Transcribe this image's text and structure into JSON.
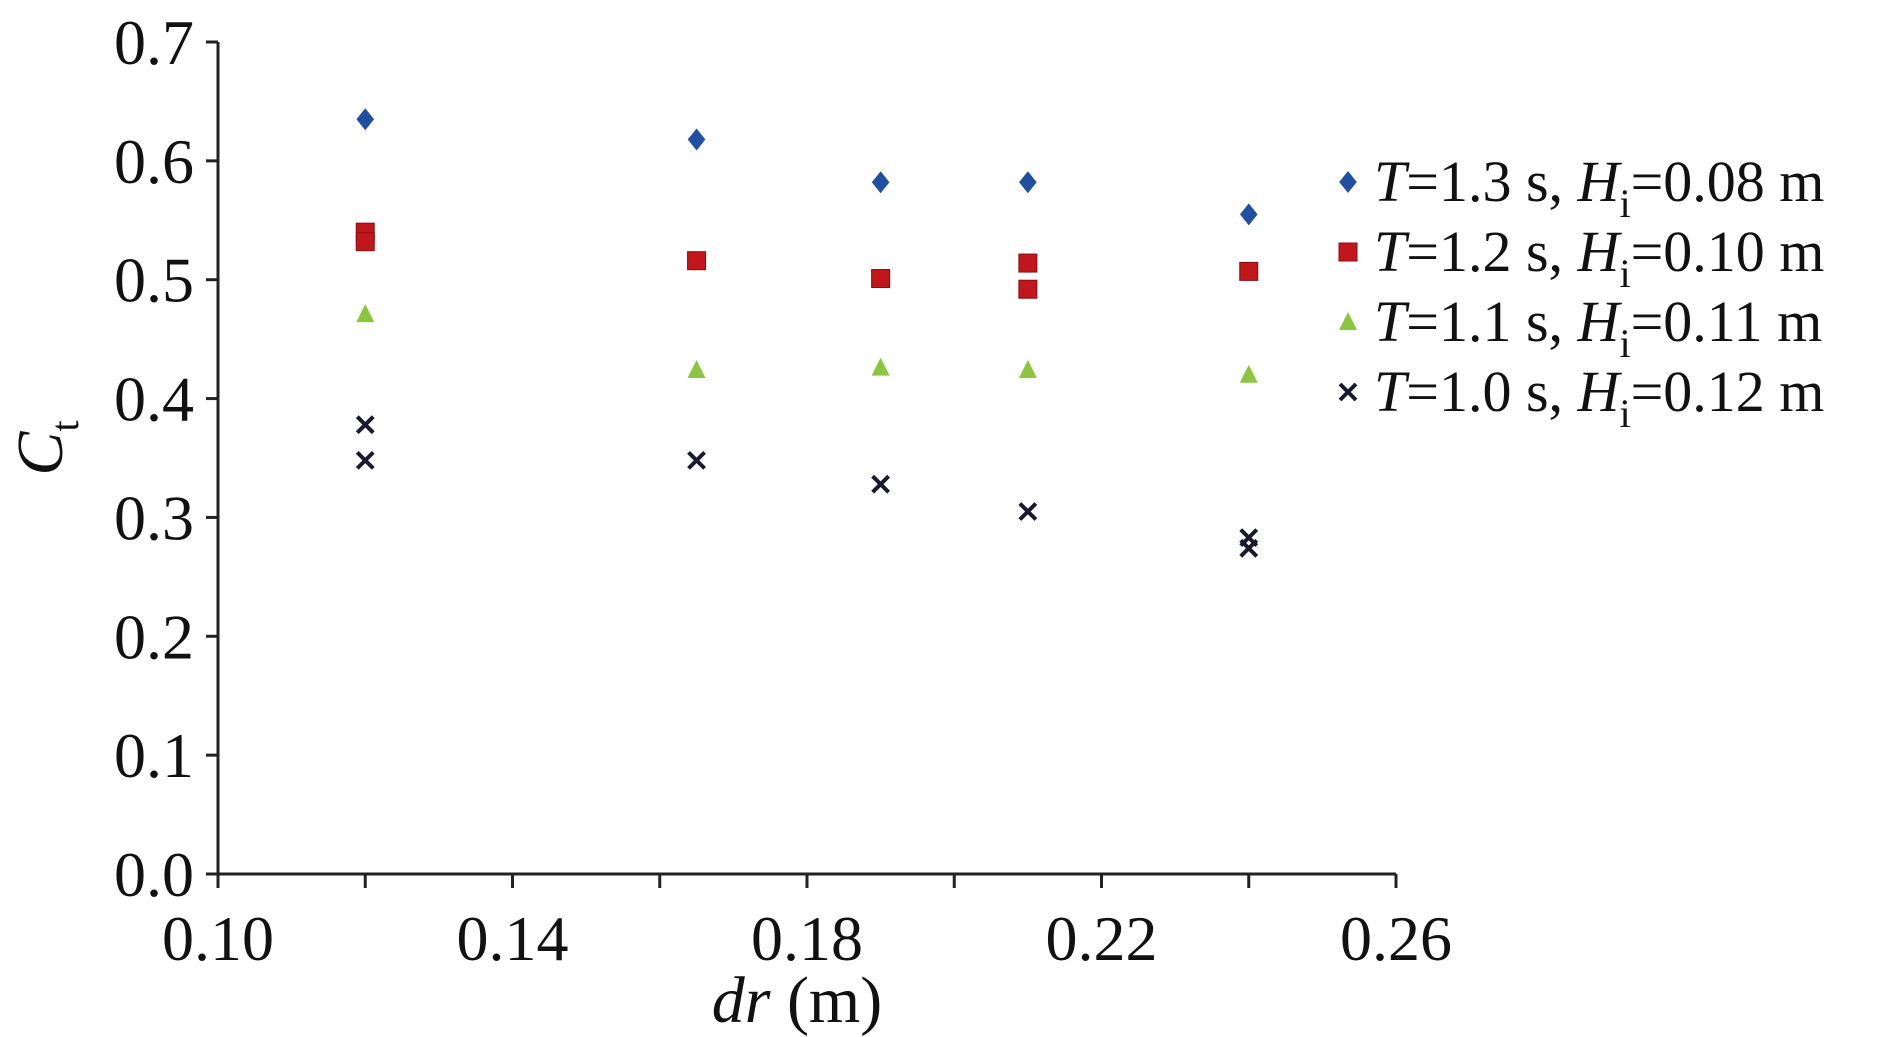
{
  "chart_data": {
    "type": "scatter",
    "title": "",
    "xlabel": {
      "var": "dr",
      "unit": " (m)"
    },
    "ylabel": {
      "main": "C",
      "sub": "t"
    },
    "xlim": [
      0.1,
      0.26
    ],
    "ylim": [
      0.0,
      0.7
    ],
    "xticks": [
      "0.10",
      "0.14",
      "0.18",
      "0.22",
      "0.26"
    ],
    "yticks": [
      "0.0",
      "0.1",
      "0.2",
      "0.3",
      "0.4",
      "0.5",
      "0.6",
      "0.7"
    ],
    "grid": false,
    "legend_position": "right",
    "series": [
      {
        "name": "T=1.3 s, Hi=0.08 m",
        "label_parts": {
          "T": "T",
          "t_val": "=1.3 s, ",
          "H": "H",
          "sub": "i",
          "h_val": "=0.08 m"
        },
        "marker": "diamond",
        "color": "#1f4fa0",
        "x": [
          0.12,
          0.165,
          0.19,
          0.21,
          0.24
        ],
        "y": [
          0.635,
          0.618,
          0.582,
          0.582,
          0.555
        ]
      },
      {
        "name": "T=1.2 s, Hi=0.10 m",
        "label_parts": {
          "T": "T",
          "t_val": "=1.2 s, ",
          "H": "H",
          "sub": "i",
          "h_val": "=0.10 m"
        },
        "marker": "square",
        "color": "#c0161c",
        "x": [
          0.12,
          0.12,
          0.165,
          0.19,
          0.21,
          0.21,
          0.24
        ],
        "y": [
          0.54,
          0.532,
          0.516,
          0.501,
          0.514,
          0.492,
          0.507
        ]
      },
      {
        "name": "T=1.1 s, Hi=0.11 m",
        "label_parts": {
          "T": "T",
          "t_val": "=1.1 s, ",
          "H": "H",
          "sub": "i",
          "h_val": "=0.11 m"
        },
        "marker": "triangle",
        "color": "#8cc63f",
        "x": [
          0.12,
          0.165,
          0.19,
          0.21,
          0.24
        ],
        "y": [
          0.471,
          0.424,
          0.426,
          0.424,
          0.42
        ]
      },
      {
        "name": "T=1.0 s, Hi=0.12 m",
        "label_parts": {
          "T": "T",
          "t_val": "=1.0 s, ",
          "H": "H",
          "sub": "i",
          "h_val": "=0.12 m"
        },
        "marker": "x",
        "color": "#1a1a2e",
        "x": [
          0.12,
          0.12,
          0.165,
          0.19,
          0.21,
          0.24,
          0.24
        ],
        "y": [
          0.378,
          0.348,
          0.348,
          0.328,
          0.305,
          0.283,
          0.274
        ]
      }
    ]
  }
}
